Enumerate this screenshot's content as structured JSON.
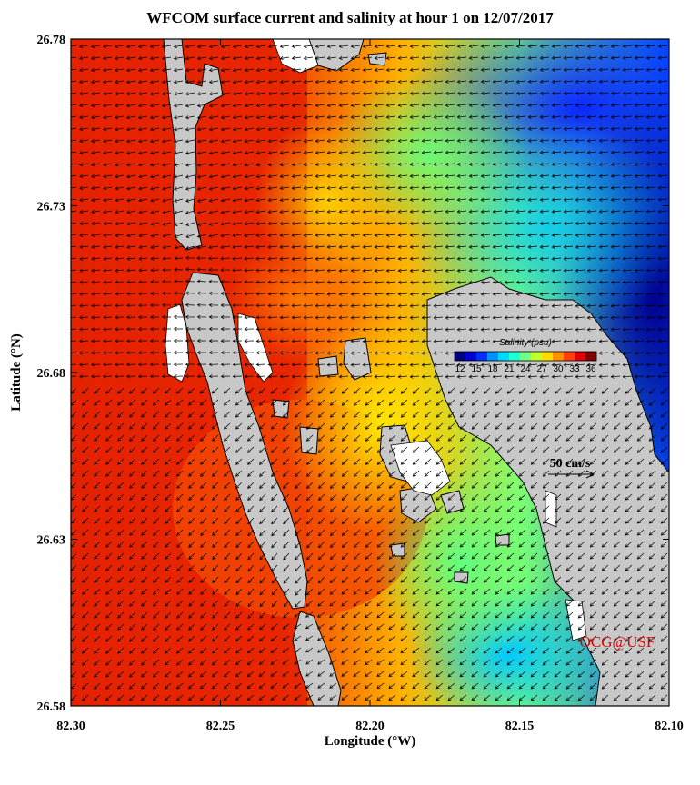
{
  "title": "WFCOM surface current and salinity at hour 1 on 12/07/2017",
  "xaxis": {
    "label": "Longitude (°W)",
    "ticks": [
      "82.30",
      "82.25",
      "82.20",
      "82.15",
      "82.10"
    ],
    "range": [
      82.3,
      82.1
    ]
  },
  "yaxis": {
    "label": "Latitude (°N)",
    "ticks": [
      "26.78",
      "26.73",
      "26.68",
      "26.63",
      "26.58"
    ],
    "range": [
      26.58,
      26.78
    ]
  },
  "colorbar": {
    "title": "Salinity (psu)",
    "ticks": [
      "12",
      "15",
      "18",
      "21",
      "24",
      "27",
      "30",
      "33",
      "36"
    ],
    "colors": [
      "#00007f",
      "#0000d0",
      "#0030ff",
      "#0090ff",
      "#00d8ff",
      "#20ffd8",
      "#70ff88",
      "#c0ff30",
      "#ffe000",
      "#ff9000",
      "#ff4000",
      "#e00000",
      "#800000"
    ]
  },
  "scale_arrow": {
    "label": "50 cm/s"
  },
  "credit": "OCG@USF",
  "colors": {
    "land": "#c8c8c8",
    "frame": "#000000",
    "credit": "#e00000"
  }
}
